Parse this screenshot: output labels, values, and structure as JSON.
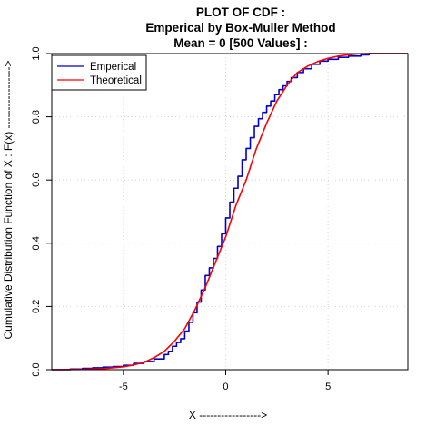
{
  "chart_data": {
    "type": "line",
    "title_lines": [
      "PLOT OF CDF :",
      "Emperical by Box-Muller Method",
      "Mean = 0 [500 Values] :"
    ],
    "xlabel": "X ----------------->",
    "ylabel": "Cumulative Distribution Function of X : F(x) ----------------->",
    "xlim": [
      -8.5,
      8.9
    ],
    "ylim": [
      0,
      1
    ],
    "x_ticks": [
      -5,
      0,
      5
    ],
    "y_ticks": [
      0.0,
      0.2,
      0.4,
      0.6,
      0.8,
      1.0
    ],
    "x_tick_labels": [
      "-5",
      "0",
      "5"
    ],
    "y_tick_labels": [
      "0.0",
      "0.2",
      "0.4",
      "0.6",
      "0.8",
      "1.0"
    ],
    "grid": true,
    "legend_position": "top-left",
    "series": [
      {
        "name": "Emperical",
        "color": "#0000cc",
        "style": "step",
        "points": [
          [
            -8.5,
            0.0
          ],
          [
            -7.6,
            0.002
          ],
          [
            -7.0,
            0.004
          ],
          [
            -6.5,
            0.006
          ],
          [
            -6.0,
            0.008
          ],
          [
            -5.5,
            0.01
          ],
          [
            -5.0,
            0.014
          ],
          [
            -4.5,
            0.02
          ],
          [
            -4.0,
            0.026
          ],
          [
            -3.5,
            0.034
          ],
          [
            -3.0,
            0.048
          ],
          [
            -2.8,
            0.058
          ],
          [
            -2.6,
            0.074
          ],
          [
            -2.4,
            0.086
          ],
          [
            -2.2,
            0.098
          ],
          [
            -2.0,
            0.122
          ],
          [
            -1.8,
            0.15
          ],
          [
            -1.6,
            0.18
          ],
          [
            -1.4,
            0.214
          ],
          [
            -1.2,
            0.252
          ],
          [
            -1.0,
            0.298
          ],
          [
            -0.8,
            0.322
          ],
          [
            -0.6,
            0.352
          ],
          [
            -0.4,
            0.39
          ],
          [
            -0.2,
            0.43
          ],
          [
            0.0,
            0.48
          ],
          [
            0.2,
            0.53
          ],
          [
            0.4,
            0.574
          ],
          [
            0.6,
            0.612
          ],
          [
            0.8,
            0.664
          ],
          [
            1.0,
            0.7
          ],
          [
            1.2,
            0.734
          ],
          [
            1.4,
            0.77
          ],
          [
            1.6,
            0.794
          ],
          [
            1.8,
            0.814
          ],
          [
            2.0,
            0.834
          ],
          [
            2.2,
            0.85
          ],
          [
            2.4,
            0.87
          ],
          [
            2.6,
            0.886
          ],
          [
            2.8,
            0.898
          ],
          [
            3.0,
            0.912
          ],
          [
            3.2,
            0.924
          ],
          [
            3.5,
            0.94
          ],
          [
            3.8,
            0.952
          ],
          [
            4.2,
            0.966
          ],
          [
            4.6,
            0.976
          ],
          [
            5.0,
            0.982
          ],
          [
            5.5,
            0.988
          ],
          [
            6.0,
            0.992
          ],
          [
            6.6,
            0.996
          ],
          [
            7.0,
            1.0
          ],
          [
            8.9,
            1.0
          ]
        ]
      },
      {
        "name": "Theoretical",
        "color": "#ff0000",
        "style": "smooth",
        "points": [
          [
            -8.5,
            0.0
          ],
          [
            -7.0,
            0.001
          ],
          [
            -6.0,
            0.003
          ],
          [
            -5.0,
            0.009
          ],
          [
            -4.5,
            0.015
          ],
          [
            -4.0,
            0.023
          ],
          [
            -3.5,
            0.038
          ],
          [
            -3.0,
            0.058
          ],
          [
            -2.5,
            0.09
          ],
          [
            -2.0,
            0.13
          ],
          [
            -1.5,
            0.19
          ],
          [
            -1.0,
            0.26
          ],
          [
            -0.5,
            0.34
          ],
          [
            0.0,
            0.42
          ],
          [
            0.5,
            0.52
          ],
          [
            1.0,
            0.6
          ],
          [
            1.5,
            0.7
          ],
          [
            2.0,
            0.78
          ],
          [
            2.5,
            0.85
          ],
          [
            3.0,
            0.9
          ],
          [
            3.5,
            0.94
          ],
          [
            4.0,
            0.96
          ],
          [
            4.5,
            0.975
          ],
          [
            5.0,
            0.985
          ],
          [
            5.5,
            0.992
          ],
          [
            6.0,
            0.996
          ],
          [
            6.5,
            0.999
          ],
          [
            7.0,
            1.0
          ],
          [
            8.9,
            1.0
          ]
        ]
      }
    ]
  }
}
